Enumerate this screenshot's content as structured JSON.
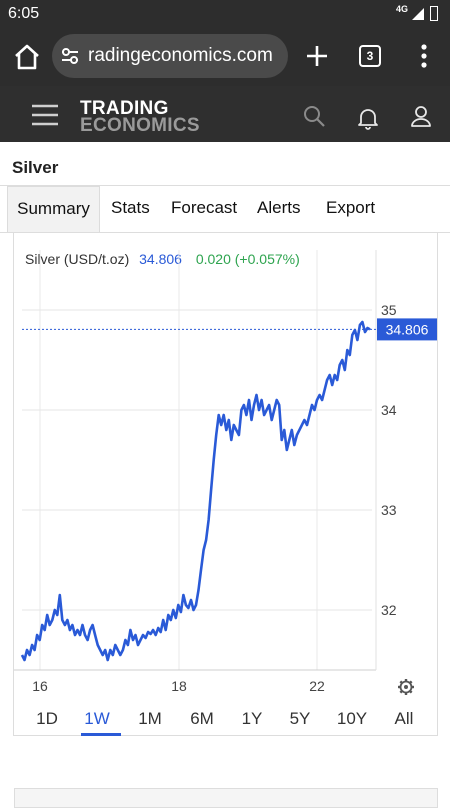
{
  "status_bar": {
    "time": "6:05",
    "network": "4G"
  },
  "browser": {
    "url": "radingeconomics.com",
    "tab_count": "3"
  },
  "site": {
    "logo_line1": "TRADING",
    "logo_line2": "ECONOMICS"
  },
  "page": {
    "title": "Silver"
  },
  "tabs": [
    {
      "label": "Summary",
      "active": true
    },
    {
      "label": "Stats",
      "active": false
    },
    {
      "label": "Forecast",
      "active": false
    },
    {
      "label": "Alerts",
      "active": false
    },
    {
      "label": "Export",
      "active": false
    }
  ],
  "quote": {
    "name": "Silver (USD/t.oz)",
    "price": "34.806",
    "change": "0.020 (+0.057%)"
  },
  "colors": {
    "line": "#2a5ad7",
    "positive": "#2ea44f",
    "header_bg": "#2f2f2f"
  },
  "ranges": [
    {
      "label": "1D",
      "active": false
    },
    {
      "label": "1W",
      "active": true
    },
    {
      "label": "1M",
      "active": false
    },
    {
      "label": "6M",
      "active": false
    },
    {
      "label": "1Y",
      "active": false
    },
    {
      "label": "5Y",
      "active": false
    },
    {
      "label": "10Y",
      "active": false
    },
    {
      "label": "All",
      "active": false
    }
  ],
  "chart_data": {
    "type": "line",
    "title": "",
    "xlabel": "",
    "ylabel": "",
    "x_ticks": [
      "16",
      "18",
      "22"
    ],
    "y_ticks": [
      32,
      33,
      34,
      35
    ],
    "ylim": [
      31.4,
      35.1
    ],
    "last_value_label": "34.806",
    "grid": true,
    "series": [
      {
        "values": [
          31.55,
          31.5,
          31.6,
          31.55,
          31.65,
          31.6,
          31.75,
          31.7,
          31.85,
          31.8,
          31.95,
          31.85,
          31.9,
          32.0,
          31.95,
          32.15,
          31.9,
          31.85,
          31.9,
          31.8,
          31.85,
          31.75,
          31.8,
          31.75,
          31.85,
          31.75,
          31.7,
          31.8,
          31.85,
          31.75,
          31.65,
          31.6,
          31.55,
          31.6,
          31.5,
          31.6,
          31.55,
          31.65,
          31.6,
          31.55,
          31.6,
          31.7,
          31.65,
          31.8,
          31.7,
          31.75,
          31.65,
          31.7,
          31.75,
          31.72,
          31.78,
          31.76,
          31.8,
          31.75,
          31.82,
          31.78,
          31.9,
          31.8,
          31.95,
          31.9,
          32.0,
          31.92,
          32.05,
          31.98,
          32.15,
          32.05,
          32.02,
          32.1,
          32.0,
          32.05,
          32.2,
          32.4,
          32.6,
          32.7,
          32.9,
          33.2,
          33.5,
          33.75,
          33.95,
          33.85,
          33.95,
          33.8,
          33.9,
          33.7,
          33.85,
          33.8,
          33.75,
          34.0,
          34.05,
          33.95,
          34.1,
          33.9,
          34.05,
          34.15,
          34.0,
          34.1,
          33.95,
          34.0,
          34.05,
          33.9,
          34.0,
          34.1,
          34.05,
          33.7,
          33.8,
          33.6,
          33.7,
          33.8,
          33.65,
          33.75,
          33.8,
          33.85,
          33.9,
          33.85,
          33.95,
          34.05,
          34.0,
          34.1,
          34.15,
          34.1,
          34.2,
          34.3,
          34.35,
          34.25,
          34.35,
          34.3,
          34.45,
          34.5,
          34.4,
          34.6,
          34.55,
          34.75,
          34.8,
          34.7,
          34.85,
          34.88,
          34.78,
          34.82,
          34.806
        ]
      }
    ]
  }
}
